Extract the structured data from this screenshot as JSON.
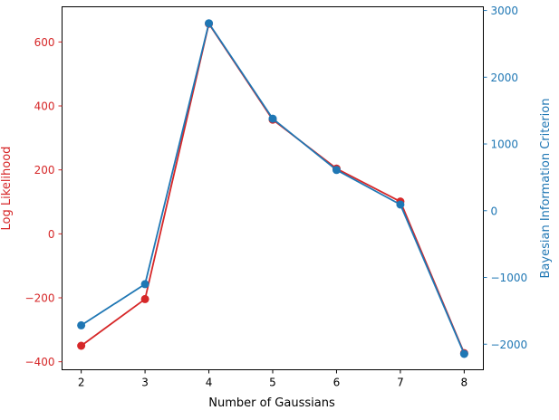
{
  "chart_data": {
    "type": "line",
    "xlabel": "Number of Gaussians",
    "x": [
      2,
      3,
      4,
      5,
      6,
      7,
      8
    ],
    "xlim": [
      1.7,
      8.3
    ],
    "xticks": [
      "2",
      "3",
      "4",
      "5",
      "6",
      "7",
      "8"
    ],
    "left_axis": {
      "label": "Log Likelihood",
      "color": "#d62728",
      "ylim": [
        -425,
        710
      ],
      "ticks": [
        -400,
        -200,
        0,
        200,
        400,
        600
      ],
      "tick_labels": [
        "−400",
        "−200",
        "0",
        "200",
        "400",
        "600"
      ]
    },
    "right_axis": {
      "label": "Bayesian Information Criterion",
      "color": "#1f77b4",
      "ylim": [
        -2383,
        3055
      ],
      "ticks": [
        -2000,
        -1000,
        0,
        1000,
        2000,
        3000
      ],
      "tick_labels": [
        "−2000",
        "−1000",
        "0",
        "1000",
        "2000",
        "3000"
      ]
    },
    "series": [
      {
        "axis": "left",
        "color": "#d62728",
        "values": [
          -350,
          -204,
          657,
          357,
          204,
          101,
          -373
        ]
      },
      {
        "axis": "right",
        "color": "#1f77b4",
        "values": [
          -1717,
          -1100,
          2808,
          1379,
          610,
          92,
          -2145
        ]
      }
    ],
    "grid": false,
    "legend": "none"
  }
}
